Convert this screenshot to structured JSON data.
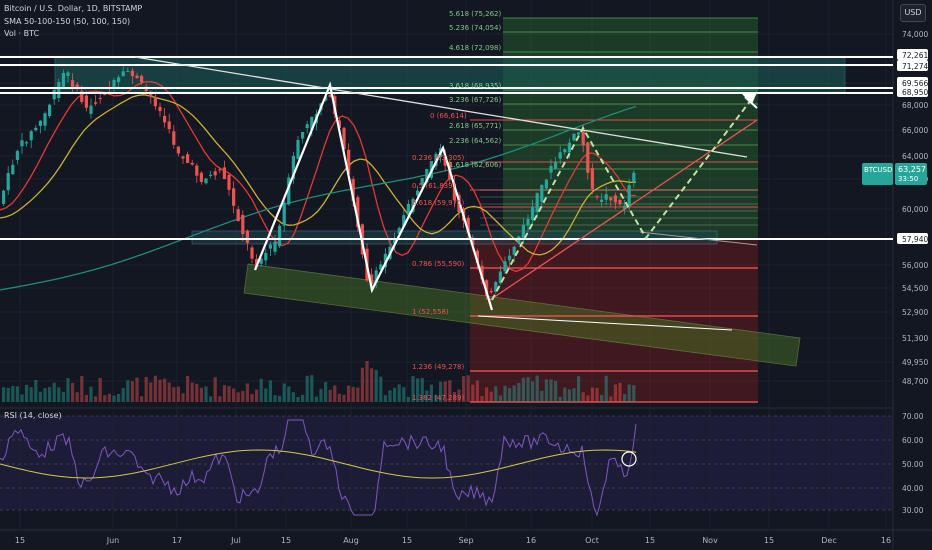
{
  "header": {
    "title": "Bitcoin / U.S. Dollar, 1D, BITSTAMP",
    "sma": "SMA 50-100-150 (50, 100, 150)",
    "vol": "Vol · BTC",
    "currency": "USD"
  },
  "rsi": {
    "label": "RSI (14, close)"
  },
  "chart_data": {
    "type": "candlestick",
    "x_ticks": [
      "15",
      "Jun",
      "17",
      "Jul",
      "15",
      "Aug",
      "15",
      "Sep",
      "16",
      "Oct",
      "15",
      "Nov",
      "15",
      "Dec",
      "16"
    ],
    "y_ticks": [
      "74,000",
      "72,261",
      "71,274",
      "69,566",
      "68,950",
      "68,000",
      "66,000",
      "64,000",
      "62,000",
      "60,000",
      "57,940",
      "56,000",
      "54,500",
      "52,900",
      "51,300",
      "49,950",
      "48,700"
    ],
    "rsi_ticks": [
      "70.00",
      "60.00",
      "50.00",
      "40.00",
      "30.00"
    ],
    "current_price": {
      "symbol": "BTCUSD",
      "value": "63,257",
      "countdown": "33:50"
    },
    "horizontal_levels": [
      72261,
      71274,
      69566,
      68950,
      57940
    ],
    "fib_upper": [
      "5.618 (75,262)",
      "5.236 (74,054)",
      "4.618 (72,098)",
      "3.618 (68,935)",
      "3.236 (67,726)",
      "2.618 (65,771)",
      "2.236 (64,562)",
      "1.618 (62,606)"
    ],
    "fib_lower": [
      "0 (66,614)",
      "0.236 (63,305)",
      "0.5 (61,839)",
      "0.618 (59,975)",
      "0.786 (55,590)",
      "1 (52,558)",
      "1.236 (49,278)",
      "1.382 (47,289)"
    ],
    "annotations": [
      "symmetrical W pattern with projected bounce toward 68,950–69,566 zone"
    ],
    "colors": {
      "bull": "#26a69a",
      "bear": "#ef5350",
      "sma50": "#e53935",
      "sma100": "#c9b037",
      "sma150": "#1e8c7a",
      "rsi": "#7e57c2",
      "rsi_ma": "#d4c84a",
      "green_zone": "#4caf50",
      "red_zone": "#ef5350"
    }
  }
}
